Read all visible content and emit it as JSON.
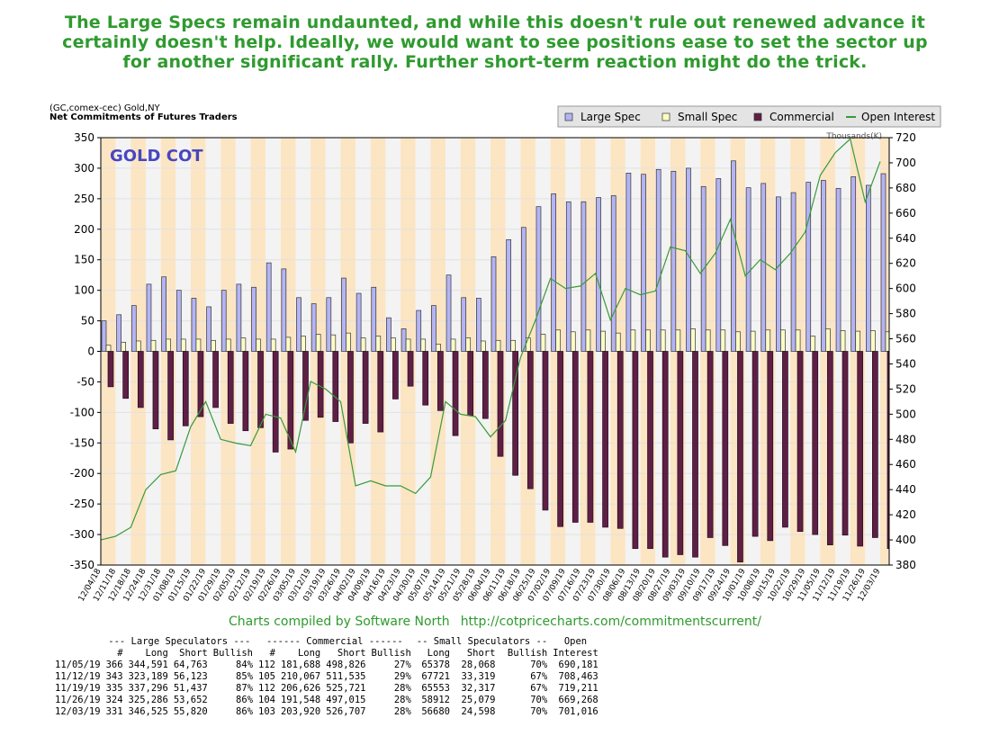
{
  "header": {
    "lines": [
      "The Large Specs remain undaunted, and while this doesn't rule out renewed advance it",
      "certainly doesn't help. Ideally, we would want to see positions ease to set the sector up",
      "for another significant rally. Further short-term reaction might do the trick."
    ]
  },
  "chart_data": {
    "type": "bar",
    "title": "(GC,comex-cec) Gold,NY",
    "subtitle": "Net Commitments of Futures Traders",
    "annotation": "GOLD COT",
    "y2_label": "Thousands(K)",
    "categories": [
      "12/04/18",
      "12/11/18",
      "12/18/18",
      "12/24/18",
      "12/31/18",
      "01/08/19",
      "01/15/19",
      "01/22/19",
      "01/29/19",
      "02/05/19",
      "02/12/19",
      "02/19/19",
      "02/26/19",
      "03/05/19",
      "03/12/19",
      "03/19/19",
      "03/26/19",
      "04/02/19",
      "04/09/19",
      "04/16/19",
      "04/23/19",
      "04/30/19",
      "05/07/19",
      "05/14/19",
      "05/21/19",
      "05/28/19",
      "06/04/19",
      "06/11/19",
      "06/18/19",
      "06/25/19",
      "07/02/19",
      "07/09/19",
      "07/16/19",
      "07/23/19",
      "07/30/19",
      "08/06/19",
      "08/13/19",
      "08/20/19",
      "08/27/19",
      "09/03/19",
      "09/10/19",
      "09/17/19",
      "09/24/19",
      "10/01/19",
      "10/08/19",
      "10/15/19",
      "10/22/19",
      "10/29/19",
      "11/05/19",
      "11/12/19",
      "11/19/19",
      "11/26/19",
      "12/03/19"
    ],
    "series": [
      {
        "name": "Large Spec",
        "color": "#b4b4f4",
        "values": [
          50,
          60,
          75,
          110,
          122,
          100,
          87,
          73,
          100,
          110,
          105,
          145,
          135,
          88,
          78,
          88,
          120,
          95,
          105,
          55,
          37,
          67,
          75,
          125,
          88,
          87,
          155,
          183,
          203,
          237,
          258,
          245,
          245,
          252,
          255,
          292,
          290,
          298,
          295,
          300,
          270,
          283,
          312,
          268,
          275,
          253,
          260,
          277,
          280,
          267,
          286,
          272,
          291
        ]
      },
      {
        "name": "Small Spec",
        "color": "#ffffc4",
        "values": [
          10,
          15,
          17,
          18,
          20,
          20,
          20,
          18,
          20,
          22,
          20,
          20,
          23,
          25,
          28,
          27,
          30,
          22,
          25,
          22,
          20,
          20,
          12,
          20,
          22,
          17,
          18,
          18,
          22,
          28,
          35,
          32,
          35,
          33,
          30,
          35,
          35,
          35,
          35,
          37,
          35,
          35,
          32,
          33,
          35,
          35,
          35,
          25,
          37,
          34,
          33,
          34,
          32
        ]
      },
      {
        "name": "Commercial",
        "color": "#5e1f45",
        "values": [
          -58,
          -77,
          -92,
          -127,
          -145,
          -122,
          -107,
          -92,
          -118,
          -130,
          -125,
          -165,
          -160,
          -113,
          -108,
          -115,
          -150,
          -118,
          -132,
          -78,
          -57,
          -88,
          -97,
          -138,
          -105,
          -110,
          -172,
          -203,
          -225,
          -260,
          -287,
          -280,
          -280,
          -288,
          -290,
          -323,
          -323,
          -337,
          -333,
          -337,
          -305,
          -318,
          -345,
          -303,
          -310,
          -288,
          -295,
          -300,
          -317,
          -301,
          -319,
          -305,
          -323
        ]
      },
      {
        "name": "Open Interest",
        "color": "#3a9a3a",
        "type": "line",
        "axis": "y2",
        "values": [
          400,
          403,
          410,
          440,
          452,
          455,
          490,
          510,
          480,
          477,
          475,
          500,
          497,
          470,
          526,
          520,
          510,
          443,
          447,
          443,
          443,
          437,
          450,
          510,
          500,
          498,
          482,
          495,
          545,
          575,
          608,
          600,
          602,
          612,
          575,
          600,
          595,
          598,
          633,
          630,
          612,
          628,
          655,
          610,
          623,
          615,
          628,
          645,
          690,
          708,
          719,
          669,
          701
        ]
      }
    ],
    "ylim": [
      -350,
      350
    ],
    "yticks": [
      -350,
      -300,
      -250,
      -200,
      -150,
      -100,
      -50,
      0,
      50,
      100,
      150,
      200,
      250,
      300,
      350
    ],
    "y2lim": [
      380,
      720
    ],
    "y2ticks": [
      380,
      400,
      420,
      440,
      460,
      480,
      500,
      520,
      540,
      560,
      580,
      600,
      620,
      640,
      660,
      680,
      700,
      720
    ],
    "grid": true,
    "legend": "top-right"
  },
  "footer": {
    "credit": "Charts compiled by Software North",
    "url": "http://cotpricecharts.com/commitmentscurrent/"
  },
  "table": {
    "groups": [
      "--- Large Speculators ---",
      "------ Commercial ------",
      "-- Small Speculators --",
      "Open"
    ],
    "columns": [
      "#",
      "Long",
      "Short",
      "Bullish",
      "#",
      "Long",
      "Short",
      "Bullish",
      "Long",
      "Short",
      "Bullish",
      "Interest"
    ],
    "rows": [
      [
        "11/05/19",
        "366",
        "344,591",
        "64,763",
        "84%",
        "112",
        "181,688",
        "498,826",
        "27%",
        "65378",
        "28,068",
        "70%",
        "690,181"
      ],
      [
        "11/12/19",
        "343",
        "323,189",
        "56,123",
        "85%",
        "105",
        "210,067",
        "511,535",
        "29%",
        "67721",
        "33,319",
        "67%",
        "708,463"
      ],
      [
        "11/19/19",
        "335",
        "337,296",
        "51,437",
        "87%",
        "112",
        "206,626",
        "525,721",
        "28%",
        "65553",
        "32,317",
        "67%",
        "719,211"
      ],
      [
        "11/26/19",
        "324",
        "325,286",
        "53,652",
        "86%",
        "104",
        "191,548",
        "497,015",
        "28%",
        "58912",
        "25,079",
        "70%",
        "669,268"
      ],
      [
        "12/03/19",
        "331",
        "346,525",
        "55,820",
        "86%",
        "103",
        "203,920",
        "526,707",
        "28%",
        "56680",
        "24,598",
        "70%",
        "701,016"
      ]
    ]
  }
}
